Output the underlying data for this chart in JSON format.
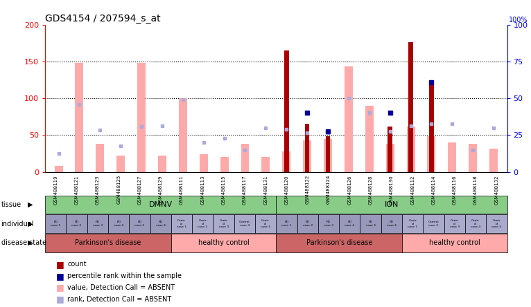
{
  "title": "GDS4154 / 207594_s_at",
  "samples": [
    "GSM488119",
    "GSM488121",
    "GSM488123",
    "GSM488125",
    "GSM488127",
    "GSM488129",
    "GSM488111",
    "GSM488113",
    "GSM488115",
    "GSM488117",
    "GSM488131",
    "GSM488120",
    "GSM488122",
    "GSM488124",
    "GSM488126",
    "GSM488128",
    "GSM488130",
    "GSM488112",
    "GSM488114",
    "GSM488116",
    "GSM488118",
    "GSM488132"
  ],
  "value_absent": [
    8,
    148,
    38,
    22,
    148,
    22,
    100,
    24,
    20,
    38,
    20,
    28,
    43,
    45,
    143,
    90,
    38,
    62,
    48,
    40,
    38,
    32
  ],
  "rank_absent": [
    25,
    92,
    57,
    35,
    62,
    63,
    98,
    40,
    46,
    30,
    60,
    58,
    53,
    53,
    100,
    80,
    55,
    63,
    65,
    65,
    30,
    60
  ],
  "count": [
    0,
    0,
    0,
    0,
    0,
    0,
    0,
    0,
    0,
    0,
    0,
    165,
    65,
    48,
    0,
    0,
    62,
    176,
    120,
    0,
    0,
    0
  ],
  "percentile_rank": [
    0,
    0,
    0,
    0,
    0,
    0,
    0,
    0,
    0,
    0,
    0,
    0,
    80,
    55,
    0,
    0,
    80,
    0,
    122,
    0,
    0,
    0
  ],
  "ylim_left": [
    0,
    200
  ],
  "ylim_right": [
    0,
    100
  ],
  "yticks_left": [
    0,
    50,
    100,
    150,
    200
  ],
  "yticks_right": [
    0,
    25,
    50,
    75,
    100
  ],
  "bar_color_value": "#ffaaaa",
  "bar_color_count": "#aa0000",
  "dot_color_rank": "#aaaadd",
  "dot_color_percentile": "#000099",
  "individual_colors_pd": "#9999bb",
  "individual_colors_ctrl": "#aaaacc",
  "disease_pd_color": "#cc6666",
  "disease_ctrl_color": "#ffaaaa",
  "tissue_color": "#88cc88",
  "plot_bg": "#ffffff",
  "xtick_bg": "#cccccc"
}
